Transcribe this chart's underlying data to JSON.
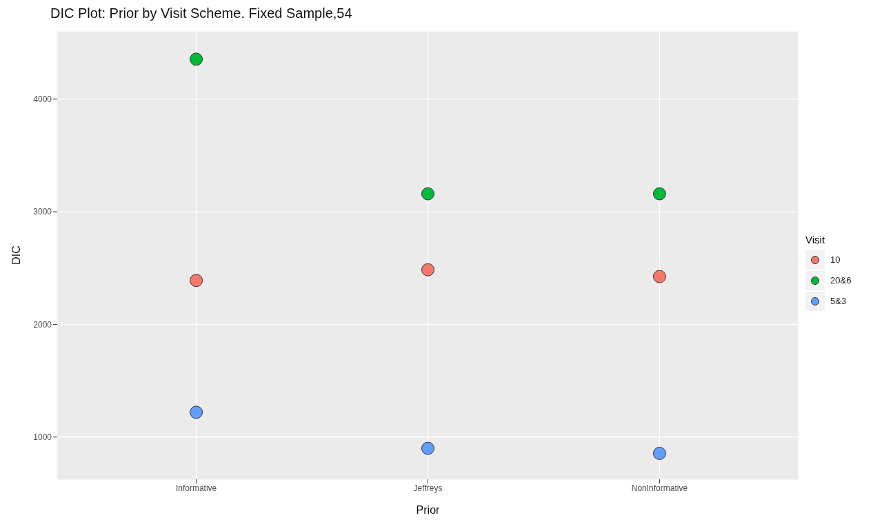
{
  "chart_data": {
    "type": "scatter",
    "title": "DIC Plot: Prior by Visit Scheme. Fixed Sample,54",
    "xlabel": "Prior",
    "ylabel": "DIC",
    "legend_title": "Visit",
    "categories": [
      "Informative",
      "Jeffreys",
      "NonInformative"
    ],
    "series": [
      {
        "name": "10",
        "color": "#f8766d",
        "values": [
          2390,
          2485,
          2425
        ]
      },
      {
        "name": "20&6",
        "color": "#00ba38",
        "values": [
          4355,
          3160,
          3160
        ]
      },
      {
        "name": "5&3",
        "color": "#619cff",
        "values": [
          1220,
          900,
          855
        ]
      }
    ],
    "ylim": [
      625,
      4605
    ],
    "yticks": [
      1000,
      2000,
      3000,
      4000
    ],
    "grid": true,
    "legend": "right",
    "marker": "circle"
  }
}
